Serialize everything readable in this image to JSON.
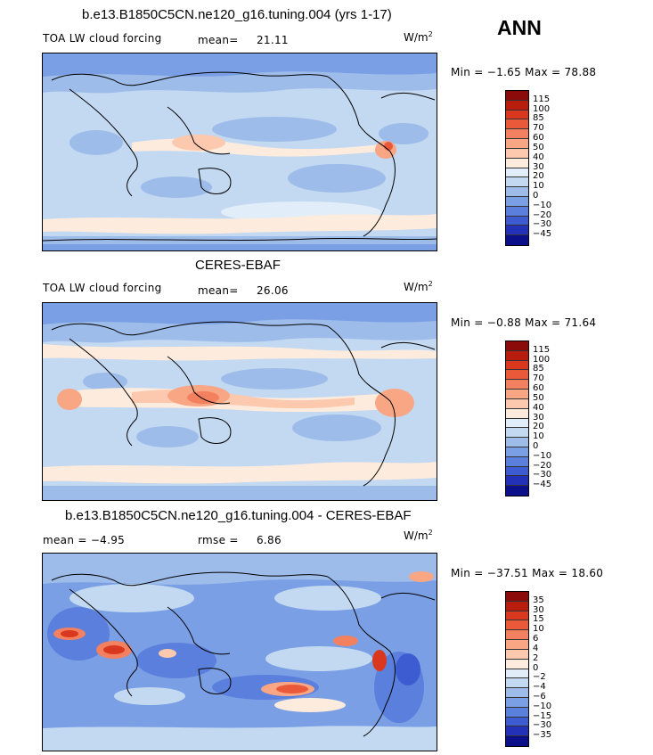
{
  "season": "ANN",
  "panels": [
    {
      "title": "b.e13.B1850C5CN.ne120_g16.tuning.004 (yrs 1-17)",
      "left_label": "TOA LW cloud forcing",
      "stat_label": "mean=",
      "stat_value": "21.11",
      "units": "W/m",
      "units_sup": "2",
      "minmax": "Min =  −1.65 Max =  78.88",
      "levels": [
        "115",
        "100",
        "85",
        "70",
        "60",
        "50",
        "40",
        "30",
        "20",
        "10",
        "0",
        "−10",
        "−20",
        "−30",
        "−45"
      ],
      "colors": [
        "#8b0a0a",
        "#b71c0d",
        "#d9381f",
        "#ea5a3a",
        "#f3805e",
        "#f9a685",
        "#fcc9ae",
        "#fdebdd",
        "#e1edf8",
        "#c3d8f1",
        "#9dbcea",
        "#7a9fe4",
        "#5b7fdc",
        "#3d5cd2",
        "#2331b8",
        "#0c0f8a"
      ]
    },
    {
      "title": "CERES-EBAF",
      "left_label": "TOA LW cloud forcing",
      "stat_label": "mean=",
      "stat_value": "26.06",
      "units": "W/m",
      "units_sup": "2",
      "minmax": "Min =  −0.88 Max =  71.64",
      "levels": [
        "115",
        "100",
        "85",
        "70",
        "60",
        "50",
        "40",
        "30",
        "20",
        "10",
        "0",
        "−10",
        "−20",
        "−30",
        "−45"
      ],
      "colors": [
        "#8b0a0a",
        "#b71c0d",
        "#d9381f",
        "#ea5a3a",
        "#f3805e",
        "#f9a685",
        "#fcc9ae",
        "#fdebdd",
        "#e1edf8",
        "#c3d8f1",
        "#9dbcea",
        "#7a9fe4",
        "#5b7fdc",
        "#3d5cd2",
        "#2331b8",
        "#0c0f8a"
      ]
    },
    {
      "title": "b.e13.B1850C5CN.ne120_g16.tuning.004 - CERES-EBAF",
      "left_label": "mean =  −4.95",
      "stat_label": "rmse =",
      "stat_value": "6.86",
      "units": "W/m",
      "units_sup": "2",
      "minmax": "Min = −37.51 Max =  18.60",
      "levels": [
        "35",
        "30",
        "15",
        "10",
        "6",
        "4",
        "2",
        "0",
        "−2",
        "−4",
        "−6",
        "−10",
        "−15",
        "−30",
        "−35"
      ],
      "colors": [
        "#8b0a0a",
        "#b71c0d",
        "#d9381f",
        "#ea5a3a",
        "#f3805e",
        "#f9a685",
        "#fcc9ae",
        "#fdebdd",
        "#e1edf8",
        "#c3d8f1",
        "#9dbcea",
        "#7a9fe4",
        "#5b7fdc",
        "#3d5cd2",
        "#2331b8",
        "#0c0f8a"
      ]
    }
  ]
}
